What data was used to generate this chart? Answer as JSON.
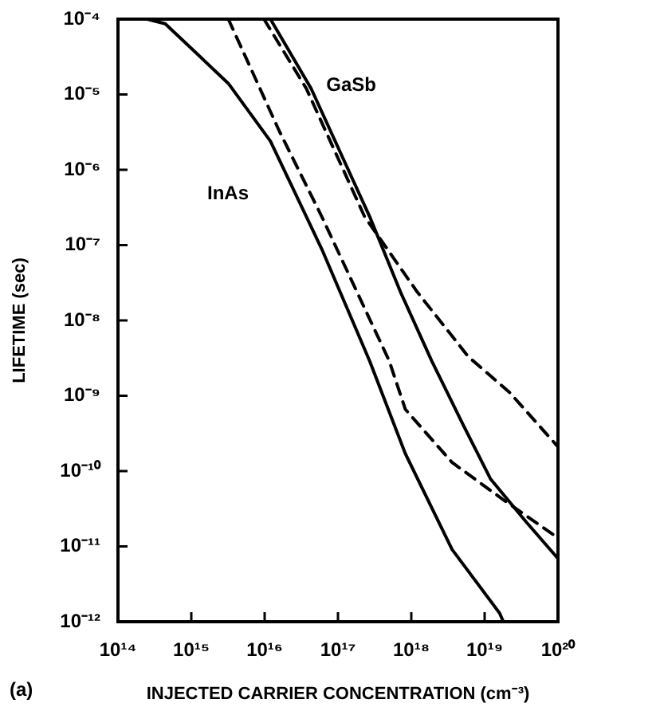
{
  "chart_data": {
    "type": "line",
    "xlabel": "INJECTED CARRIER CONCENTRATION (cm⁻³)",
    "ylabel": "LIFETIME (sec)",
    "log": "xy",
    "xlim": [
      100000000000000.0,
      1e+20
    ],
    "xticks": [
      {
        "value": 100000000000000.0,
        "label": "10¹⁴"
      },
      {
        "value": 1000000000000000.0,
        "label": "10¹⁵"
      },
      {
        "value": 1e+16,
        "label": "10¹⁶"
      },
      {
        "value": 1e+17,
        "label": "10¹⁷"
      },
      {
        "value": 1e+18,
        "label": "10¹⁸"
      },
      {
        "value": 1e+19,
        "label": "10¹⁹"
      },
      {
        "value": 1e+20,
        "label": "10²⁰"
      }
    ],
    "ylim": [
      1e-12,
      0.0001
    ],
    "yticks": [
      {
        "value": 1e-12,
        "label": "10⁻¹²"
      },
      {
        "value": 1e-11,
        "label": "10⁻¹¹"
      },
      {
        "value": 1e-10,
        "label": "10⁻¹⁰"
      },
      {
        "value": 1e-09,
        "label": "10⁻⁹"
      },
      {
        "value": 1e-08,
        "label": "10⁻⁸"
      },
      {
        "value": 1e-07,
        "label": "10⁻⁷"
      },
      {
        "value": 1e-06,
        "label": "10⁻⁶"
      },
      {
        "value": 1e-05,
        "label": "10⁻⁵"
      },
      {
        "value": 0.0001,
        "label": "10⁻⁴"
      }
    ],
    "grid": false,
    "legend": false,
    "marker": "none",
    "series": [
      {
        "color": "#000000",
        "line_style": "solid",
        "x": [
          250000000000000.0,
          440000000000000.0,
          3200000000000000.0,
          1.2e+16,
          6e+16,
          2.7e+17,
          8.3e+17,
          3.6e+18,
          1.6e+19,
          1.8e+19
        ],
        "values": [
          0.0001,
          8.7e-05,
          1.4e-05,
          2.4e-06,
          8.9e-08,
          2.9e-09,
          1.7e-10,
          9.1e-12,
          1.3e-12,
          1e-12
        ]
      },
      {
        "color": "#000000",
        "line_style": "dashed",
        "x": [
          3200000000000000.0,
          1.6e+16,
          6e+16,
          5e+17,
          8.3e+17,
          3.6e+18,
          1.9e+19,
          1e+20
        ],
        "values": [
          0.0001,
          3.2e-06,
          2.4e-07,
          2.9e-09,
          6.6e-10,
          1.3e-10,
          4e-11,
          1.3e-11
        ]
      },
      {
        "color": "#000000",
        "line_style": "dashed",
        "x": [
          9800000000000000.0,
          3.7e+16,
          2.3e+17,
          1.2e+18,
          6e+18,
          2.2e+19,
          1e+20
        ],
        "values": [
          0.0001,
          1.2e-05,
          2.4e-07,
          2.4e-08,
          3.3e-09,
          1.1e-09,
          2.1e-10
        ]
      },
      {
        "color": "#000000",
        "line_style": "solid",
        "x": [
          1.2e+16,
          4.3e+16,
          2.7e+17,
          7.1e+17,
          1.9e+18,
          5.1e+18,
          1.2e+19,
          3.7e+19,
          1e+20
        ],
        "values": [
          0.0001,
          1.2e-05,
          2.4e-07,
          2.4e-08,
          2.9e-09,
          4.1e-10,
          7.9e-11,
          2.1e-11,
          6.9e-12
        ]
      }
    ],
    "annotations": [
      "GaSb",
      "InAs",
      "(a)"
    ]
  }
}
